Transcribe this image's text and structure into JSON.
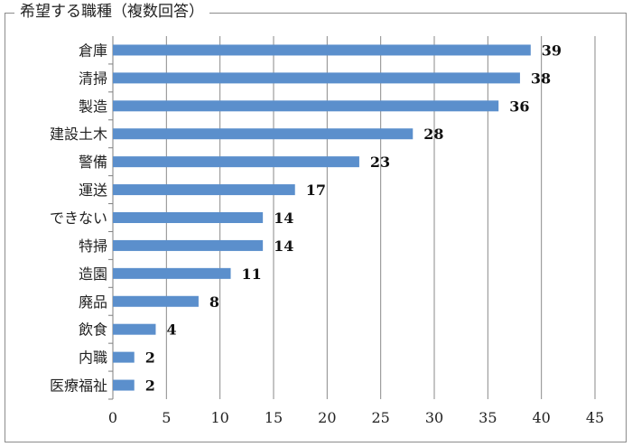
{
  "chart_data": {
    "type": "bar",
    "orientation": "horizontal",
    "title": "希望する職種（複数回答）",
    "categories": [
      "倉庫",
      "清掃",
      "製造",
      "建設土木",
      "警備",
      "運送",
      "できない",
      "特掃",
      "造園",
      "廃品",
      "飲食",
      "内職",
      "医療福祉"
    ],
    "values": [
      39,
      38,
      36,
      28,
      23,
      17,
      14,
      14,
      11,
      8,
      4,
      2,
      2
    ],
    "x_ticks": [
      "0",
      "5",
      "10",
      "15",
      "20",
      "25",
      "30",
      "35",
      "40",
      "45"
    ],
    "xlim": [
      0,
      45
    ],
    "grid": "vertical",
    "legend": "none",
    "bar_color": "#5b8fcc",
    "data_labels": true
  }
}
